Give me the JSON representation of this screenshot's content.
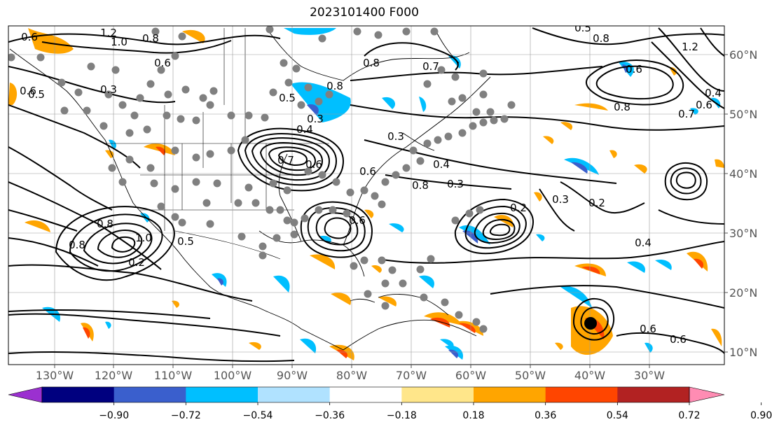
{
  "title": "2023101400 F000",
  "lon_labels": [
    "130°W",
    "120°W",
    "110°W",
    "100°W",
    "90°W",
    "80°W",
    "70°W",
    "60°W",
    "50°W",
    "40°W",
    "30°W"
  ],
  "lat_labels": [
    "60°N",
    "50°N",
    "40°N",
    "30°N",
    "20°N",
    "10°N"
  ],
  "colorbar": {
    "ticks": [
      "−0.90",
      "−0.72",
      "−0.54",
      "−0.36",
      "−0.18",
      "0.18",
      "0.36",
      "0.54",
      "0.72",
      "0.90"
    ],
    "colors": [
      "#9b30d0",
      "#00007f",
      "#3a5fcd",
      "#00bfff",
      "#b0e2ff",
      "#ffffff",
      "#ffe68a",
      "#ffa500",
      "#ff4500",
      "#b22222",
      "#ff8cb3"
    ]
  },
  "contour_labels": [
    "1.2",
    "1.0",
    "0.8",
    "0.6",
    "0.6",
    "0.3",
    "0.8",
    "0.5",
    "0.8",
    "0.7",
    "0.6",
    "0.6",
    "0.5",
    "0.6",
    "0.4",
    "0.8",
    "0.7",
    "0.4",
    "0.3",
    "0.3",
    "0.4",
    "0.3",
    "0.8",
    "0.6",
    "0.7",
    "0.6",
    "0.8",
    "1.0",
    "0.2",
    "0.8",
    "0.5",
    "0.6",
    "0.2",
    "0.3",
    "0.2",
    "0.4",
    "0.6",
    "0.6",
    "1.2",
    "0.8",
    "0.5"
  ]
}
